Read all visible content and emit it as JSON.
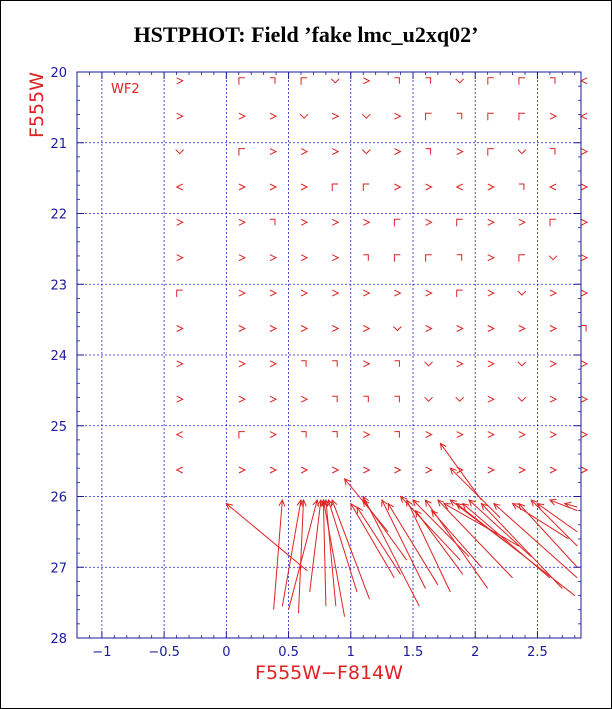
{
  "chart_data": {
    "type": "scatter",
    "title": "HSTPHOT: Field ’fake lmc_u2xq02’",
    "xlabel": "F555W−F814W",
    "ylabel": "F555W",
    "panel_label": "WF2",
    "xlim": [
      -1.2,
      2.85
    ],
    "ylim": [
      28,
      20
    ],
    "x_ticks": [
      -1,
      -0.5,
      0,
      0.5,
      1,
      1.5,
      2,
      2.5
    ],
    "x_tick_labels": [
      "−1",
      "−0.5",
      "0",
      "0.5",
      "1",
      "1.5",
      "2",
      "2.5"
    ],
    "y_ticks": [
      20,
      21,
      22,
      23,
      24,
      25,
      26,
      27,
      28
    ],
    "y_tick_labels": [
      "20",
      "21",
      "22",
      "23",
      "24",
      "25",
      "26",
      "27",
      "28"
    ],
    "grid_x": [
      -1,
      -0.5,
      0,
      0.5,
      1,
      1.5,
      2,
      2.5
    ],
    "grid_y": [
      21,
      22,
      23,
      24,
      25,
      26,
      27
    ],
    "grid": true,
    "colors": {
      "data": "#dd2222",
      "axis": "#1a1a9a",
      "grid": "#2222cc"
    },
    "input_colors": [
      -0.375,
      0.125,
      0.375,
      0.625,
      0.875,
      1.125,
      1.375,
      1.625,
      1.875,
      2.125,
      2.375,
      2.625,
      2.875
    ],
    "input_mags": [
      20.125,
      20.625,
      21.125,
      21.625,
      22.125,
      22.625,
      23.125,
      23.625,
      24.125,
      24.625,
      25.125,
      25.625
    ],
    "bright_marker_dirs": [
      [
        "r",
        "L",
        "rv",
        "L",
        "d",
        "r",
        "rv",
        "rv",
        "d",
        "L",
        "ld",
        "rv",
        "l"
      ],
      [
        "r",
        "r",
        "r",
        "d",
        "r",
        "d",
        "r",
        "L",
        "rv",
        "ld",
        "L",
        "r",
        "l"
      ],
      [
        "d",
        "L",
        "r",
        "r",
        "r",
        "d",
        "r",
        "rv",
        "r",
        "L",
        "d",
        "rv",
        "r"
      ],
      [
        "l",
        "r",
        "r",
        "r",
        "ld",
        "ld",
        "r",
        "r",
        "l",
        "r",
        "rv",
        "l",
        "r"
      ],
      [
        "r",
        "r",
        "rv",
        "r",
        "r",
        "r",
        "L",
        "r",
        "L",
        "r",
        "r",
        "L",
        "r"
      ],
      [
        "r",
        "r",
        "r",
        "r",
        "r",
        "rv",
        "L",
        "L",
        "rv",
        "r",
        "L",
        "d",
        "r"
      ],
      [
        "L",
        "r",
        "r",
        "r",
        "r",
        "r",
        "r",
        "r",
        "L",
        "r",
        "d",
        "r",
        "r"
      ],
      [
        "r",
        "r",
        "r",
        "r",
        "r",
        "r",
        "d",
        "r",
        "r",
        "r",
        "r",
        "r",
        "rv"
      ],
      [
        "r",
        "r",
        "r",
        "rv",
        "rv",
        "r",
        "rv",
        "d",
        "r",
        "r",
        "d",
        "r",
        "r"
      ],
      [
        "r",
        "r",
        "r",
        "r",
        "rv",
        "rv",
        "rv",
        "d",
        "d",
        "r",
        "d",
        "r",
        "r"
      ],
      [
        "l",
        "L",
        "r",
        "rv",
        "rv",
        "r",
        "rv",
        "r",
        "r",
        "r",
        "r",
        "r",
        "r"
      ],
      [
        "l",
        "r",
        "r",
        "r",
        "r",
        "r",
        "r",
        "r",
        "r",
        "r",
        "r",
        "r",
        "r"
      ]
    ],
    "faint_vectors": [
      {
        "x0": 0.0,
        "y0": 26.1,
        "x1": 0.65,
        "y1": 27.05
      },
      {
        "x0": 0.45,
        "y0": 26.05,
        "x1": 0.38,
        "y1": 27.6
      },
      {
        "x0": 0.6,
        "y0": 26.05,
        "x1": 0.45,
        "y1": 27.55
      },
      {
        "x0": 0.62,
        "y0": 26.05,
        "x1": 0.58,
        "y1": 27.65
      },
      {
        "x0": 0.73,
        "y0": 26.05,
        "x1": 0.5,
        "y1": 27.6
      },
      {
        "x0": 0.76,
        "y0": 26.05,
        "x1": 0.67,
        "y1": 27.35
      },
      {
        "x0": 0.78,
        "y0": 26.05,
        "x1": 0.8,
        "y1": 27.55
      },
      {
        "x0": 0.78,
        "y0": 26.05,
        "x1": 0.95,
        "y1": 27.7
      },
      {
        "x0": 0.8,
        "y0": 26.05,
        "x1": 0.88,
        "y1": 27.55
      },
      {
        "x0": 0.82,
        "y0": 26.05,
        "x1": 1.05,
        "y1": 27.35
      },
      {
        "x0": 0.85,
        "y0": 26.05,
        "x1": 1.15,
        "y1": 27.45
      },
      {
        "x0": 0.95,
        "y0": 25.75,
        "x1": 1.3,
        "y1": 26.5
      },
      {
        "x0": 1.0,
        "y0": 26.1,
        "x1": 1.35,
        "y1": 27.15
      },
      {
        "x0": 1.05,
        "y0": 26.15,
        "x1": 1.4,
        "y1": 27.1
      },
      {
        "x0": 1.1,
        "y0": 26.05,
        "x1": 1.45,
        "y1": 26.9
      },
      {
        "x0": 1.1,
        "y0": 26.0,
        "x1": 1.55,
        "y1": 27.55
      },
      {
        "x0": 1.25,
        "y0": 26.05,
        "x1": 1.6,
        "y1": 27.3
      },
      {
        "x0": 1.3,
        "y0": 26.1,
        "x1": 1.7,
        "y1": 27.25
      },
      {
        "x0": 1.4,
        "y0": 26.0,
        "x1": 1.88,
        "y1": 26.9
      },
      {
        "x0": 1.45,
        "y0": 26.05,
        "x1": 1.8,
        "y1": 27.35
      },
      {
        "x0": 1.5,
        "y0": 26.05,
        "x1": 1.95,
        "y1": 26.85
      },
      {
        "x0": 1.52,
        "y0": 26.2,
        "x1": 1.9,
        "y1": 27.1
      },
      {
        "x0": 1.6,
        "y0": 26.05,
        "x1": 2.1,
        "y1": 27.3
      },
      {
        "x0": 1.65,
        "y0": 26.2,
        "x1": 2.05,
        "y1": 27.0
      },
      {
        "x0": 1.7,
        "y0": 26.05,
        "x1": 2.3,
        "y1": 27.15
      },
      {
        "x0": 1.72,
        "y0": 25.25,
        "x1": 2.05,
        "y1": 26.05
      },
      {
        "x0": 1.75,
        "y0": 26.1,
        "x1": 2.35,
        "y1": 26.7
      },
      {
        "x0": 1.8,
        "y0": 26.05,
        "x1": 2.25,
        "y1": 26.65
      },
      {
        "x0": 1.8,
        "y0": 25.6,
        "x1": 2.2,
        "y1": 26.3
      },
      {
        "x0": 1.85,
        "y0": 26.1,
        "x1": 2.8,
        "y1": 27.4
      },
      {
        "x0": 1.9,
        "y0": 26.1,
        "x1": 2.6,
        "y1": 27.15
      },
      {
        "x0": 1.95,
        "y0": 26.05,
        "x1": 2.45,
        "y1": 26.85
      },
      {
        "x0": 2.05,
        "y0": 26.1,
        "x1": 2.7,
        "y1": 27.3
      },
      {
        "x0": 2.15,
        "y0": 26.1,
        "x1": 2.82,
        "y1": 27.15
      },
      {
        "x0": 2.3,
        "y0": 26.1,
        "x1": 2.75,
        "y1": 26.6
      },
      {
        "x0": 2.35,
        "y0": 26.1,
        "x1": 2.82,
        "y1": 27.0
      },
      {
        "x0": 2.45,
        "y0": 26.05,
        "x1": 2.82,
        "y1": 26.7
      },
      {
        "x0": 2.5,
        "y0": 26.1,
        "x1": 2.82,
        "y1": 26.5
      },
      {
        "x0": 2.6,
        "y0": 26.05,
        "x1": 2.82,
        "y1": 26.2
      },
      {
        "x0": 2.72,
        "y0": 26.1,
        "x1": 2.82,
        "y1": 26.15
      }
    ]
  }
}
